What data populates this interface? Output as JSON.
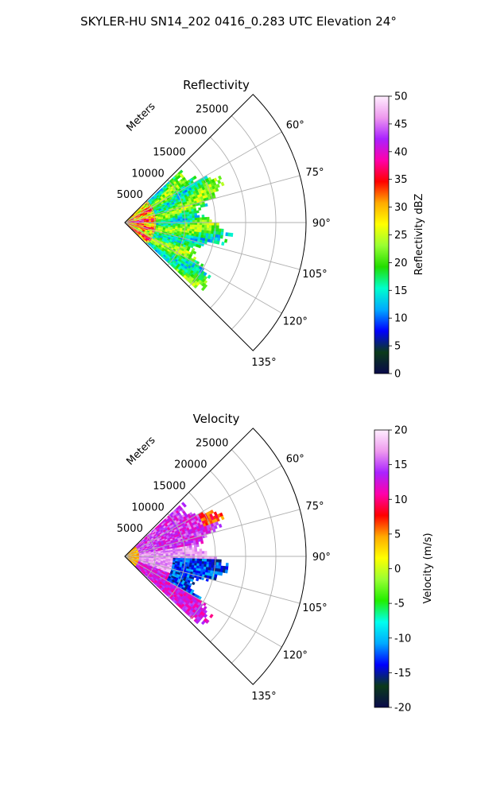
{
  "figure": {
    "title": "SKYLER-HU  SN14_202  0416_0.283 UTC Elevation 24°"
  },
  "chart_data": [
    {
      "type": "heatmap",
      "projection": "polar-sector",
      "title": "Reflectivity",
      "radial_label": "Meters",
      "radial_ticks": [
        5000,
        10000,
        15000,
        20000,
        25000
      ],
      "radial_tick_labels": [
        "5000",
        "10000",
        "15000",
        "20000",
        "25000"
      ],
      "rlim": [
        0,
        30000
      ],
      "theta_range_deg": [
        45,
        135
      ],
      "theta_ticks": [
        "60°",
        "75°",
        "90°",
        "105°",
        "120°",
        "135°"
      ],
      "theta_tick_values": [
        60,
        75,
        90,
        105,
        120,
        135
      ],
      "grid": true,
      "data_extent_m": 18000,
      "colorbar": {
        "label": "Reflectivity dBZ",
        "min": 0,
        "max": 50,
        "ticks": [
          0,
          5,
          10,
          15,
          20,
          25,
          30,
          35,
          40,
          45,
          50
        ],
        "tick_labels": [
          "0",
          "5",
          "10",
          "15",
          "20",
          "25",
          "30",
          "35",
          "40",
          "45",
          "50"
        ],
        "stops": [
          "#0a0a4a",
          "#0b3a1a",
          "#0000ff",
          "#00aaff",
          "#00ffcc",
          "#22dd00",
          "#99ff33",
          "#ffff00",
          "#ffaa00",
          "#ff0000",
          "#ff00aa",
          "#aa22ff",
          "#ee99ee",
          "#ffeeff"
        ]
      }
    },
    {
      "type": "heatmap",
      "projection": "polar-sector",
      "title": "Velocity",
      "radial_label": "Meters",
      "radial_ticks": [
        5000,
        10000,
        15000,
        20000,
        25000
      ],
      "radial_tick_labels": [
        "5000",
        "10000",
        "15000",
        "20000",
        "25000"
      ],
      "rlim": [
        0,
        30000
      ],
      "theta_range_deg": [
        45,
        135
      ],
      "theta_ticks": [
        "60°",
        "75°",
        "90°",
        "105°",
        "120°",
        "135°"
      ],
      "theta_tick_values": [
        60,
        75,
        90,
        105,
        120,
        135
      ],
      "grid": true,
      "data_extent_m": 18000,
      "colorbar": {
        "label": "Velocity (m/s)",
        "min": -20,
        "max": 20,
        "ticks": [
          -20,
          -15,
          -10,
          -5,
          0,
          5,
          10,
          15,
          20
        ],
        "tick_labels": [
          "-20",
          "-15",
          "-10",
          "-5",
          "0",
          "5",
          "10",
          "15",
          "20"
        ],
        "stops": [
          "#0a0a4a",
          "#0b3a1a",
          "#0000ff",
          "#00aaff",
          "#00ffee",
          "#22ee00",
          "#99ff33",
          "#ffff00",
          "#ffaa00",
          "#ff0000",
          "#ff00aa",
          "#aa22ff",
          "#ee99ee",
          "#ffeeff"
        ]
      }
    }
  ]
}
